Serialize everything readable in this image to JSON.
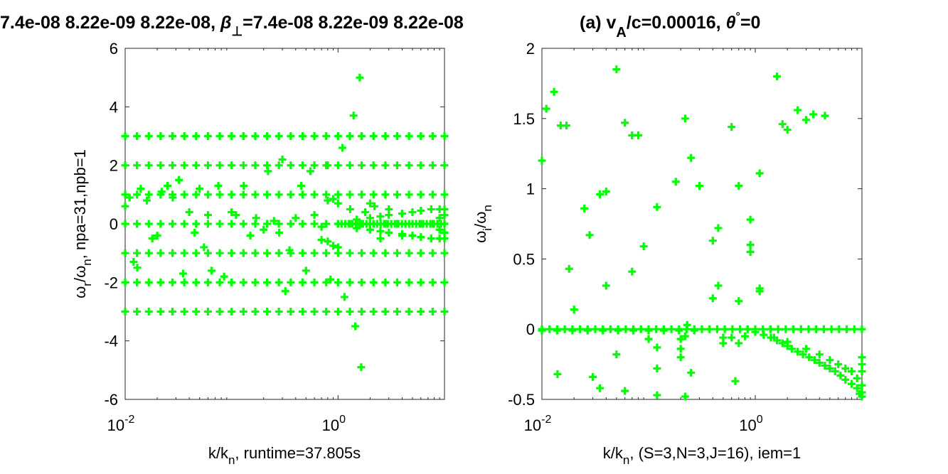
{
  "figure": {
    "title_left": "7.4e-08  8.22e-09  8.22e-08, ",
    "title_mid": "=7.4e-08  8.22e-09  8.22e-08",
    "title_overlap": "(a) v",
    "title_right": "/c=0.00016, ",
    "title_end": "=0",
    "beta_symbol": "β",
    "perp_symbol": "⊥",
    "sub_A": "A",
    "theta_symbol": "θ",
    "degree_symbol": "°"
  },
  "colors": {
    "marker": "#00ff00",
    "axis": "#262626"
  },
  "chart_data": [
    {
      "type": "scatter",
      "panel": "left",
      "marker": "+",
      "xscale": "log",
      "xlim": [
        0.01,
        10
      ],
      "ylim": [
        -6,
        6
      ],
      "xticks": [
        0.01,
        1
      ],
      "xtick_labels": [
        {
          "base": "10",
          "exp": "-2"
        },
        {
          "base": "10",
          "exp": "0"
        }
      ],
      "yticks": [
        -6,
        -4,
        -2,
        0,
        2,
        4,
        6
      ],
      "ytick_labels": [
        "-6",
        "-4",
        "-2",
        "0",
        "2",
        "4",
        "6"
      ],
      "xlabel": {
        "pre": "k/k",
        "sub": "n",
        "post": ", runtime=37.805s"
      },
      "ylabel": {
        "omega": "ω",
        "sub1": "r",
        "slash": "/",
        "sub2": "n",
        "post": ", npa=31,npb=1"
      },
      "bands_y": [
        -3,
        -2,
        -1,
        0,
        1,
        2,
        3
      ],
      "band_x_range": [
        0.01,
        10
      ],
      "band_points_per_decade": 9,
      "extra_points": [
        [
          0.01,
          0.6
        ],
        [
          0.011,
          0.9
        ],
        [
          0.012,
          -1.3
        ],
        [
          0.013,
          -1.5
        ],
        [
          0.014,
          1.2
        ],
        [
          0.016,
          0.8
        ],
        [
          0.018,
          -0.5
        ],
        [
          0.02,
          -0.4
        ],
        [
          0.022,
          1.1
        ],
        [
          0.025,
          1.3
        ],
        [
          0.028,
          0.9
        ],
        [
          0.032,
          1.5
        ],
        [
          0.035,
          -1.7
        ],
        [
          0.04,
          0.4
        ],
        [
          0.045,
          -0.3
        ],
        [
          0.05,
          1.2
        ],
        [
          0.055,
          -0.8
        ],
        [
          0.06,
          0.3
        ],
        [
          0.065,
          -1.6
        ],
        [
          0.075,
          1.3
        ],
        [
          0.085,
          -1.8
        ],
        [
          0.1,
          0.4
        ],
        [
          0.11,
          0.3
        ],
        [
          0.13,
          1.3
        ],
        [
          0.15,
          -0.4
        ],
        [
          0.17,
          0.2
        ],
        [
          0.2,
          -0.2
        ],
        [
          0.22,
          1.8
        ],
        [
          0.25,
          0.1
        ],
        [
          0.28,
          -0.3
        ],
        [
          0.3,
          2.2
        ],
        [
          0.32,
          -2.3
        ],
        [
          0.35,
          -0.9
        ],
        [
          0.4,
          0.2
        ],
        [
          0.45,
          1.3
        ],
        [
          0.5,
          -1.6
        ],
        [
          0.55,
          1.8
        ],
        [
          0.6,
          0.3
        ],
        [
          0.7,
          -0.1
        ],
        [
          0.8,
          2.0
        ],
        [
          0.85,
          -1.9
        ],
        [
          1.0,
          0.7
        ],
        [
          1.1,
          2.6
        ],
        [
          1.15,
          -2.5
        ],
        [
          1.3,
          0.5
        ],
        [
          1.4,
          3.7
        ],
        [
          1.45,
          -3.5
        ],
        [
          1.6,
          5.0
        ],
        [
          1.65,
          -4.9
        ],
        [
          1.8,
          0.4
        ],
        [
          2.0,
          0.7
        ],
        [
          2.2,
          0.6
        ],
        [
          2.5,
          -0.5
        ],
        [
          3.0,
          0.5
        ],
        [
          4.0,
          -0.4
        ]
      ],
      "spread_points": [
        [
          1.5,
          0.15
        ],
        [
          1.5,
          -0.15
        ],
        [
          2.0,
          0.2
        ],
        [
          2.0,
          -0.2
        ],
        [
          2.5,
          0.25
        ],
        [
          2.5,
          -0.25
        ],
        [
          3.0,
          0.3
        ],
        [
          3.0,
          -0.3
        ],
        [
          4.0,
          0.35
        ],
        [
          4.0,
          -0.35
        ],
        [
          5.0,
          0.4
        ],
        [
          5.0,
          -0.4
        ],
        [
          6.0,
          0.45
        ],
        [
          6.0,
          -0.45
        ],
        [
          7.5,
          0.5
        ],
        [
          7.5,
          -0.5
        ],
        [
          9.0,
          0.5
        ],
        [
          9.0,
          -0.5
        ],
        [
          10.0,
          0.5
        ],
        [
          10.0,
          -0.5
        ],
        [
          10.0,
          0.3
        ],
        [
          10.0,
          -0.3
        ],
        [
          9.0,
          0.2
        ],
        [
          9.0,
          -0.2
        ],
        [
          0.8,
          -0.6
        ],
        [
          0.9,
          -0.75
        ],
        [
          0.7,
          -0.55
        ],
        [
          0.8,
          0.8
        ],
        [
          0.9,
          0.85
        ],
        [
          1.0,
          -0.8
        ]
      ]
    },
    {
      "type": "scatter",
      "panel": "right",
      "marker": "+",
      "xscale": "log",
      "xlim": [
        0.01,
        10
      ],
      "ylim": [
        -0.5,
        2
      ],
      "xticks": [
        0.01,
        1
      ],
      "xtick_labels": [
        {
          "base": "10",
          "exp": "-2"
        },
        {
          "base": "10",
          "exp": "0"
        }
      ],
      "yticks": [
        -0.5,
        0,
        0.5,
        1,
        1.5,
        2
      ],
      "ytick_labels": [
        "-0.5",
        "0",
        "0.5",
        "1",
        "1.5",
        "2"
      ],
      "xlabel": {
        "pre": "k/k",
        "sub": "n",
        "post": ", (S=3,N=3,J=16), iem=1"
      },
      "ylabel": {
        "omega": "ω",
        "sub1": "i",
        "slash": "/",
        "omega2": "ω",
        "sub2": "n"
      },
      "zero_band_x_range": [
        0.01,
        10
      ],
      "zero_band_points_per_decade": 14,
      "points": [
        [
          0.01,
          1.2
        ],
        [
          0.011,
          1.57
        ],
        [
          0.013,
          1.69
        ],
        [
          0.015,
          1.45
        ],
        [
          0.017,
          1.45
        ],
        [
          0.014,
          -0.32
        ],
        [
          0.018,
          0.43
        ],
        [
          0.02,
          0.14
        ],
        [
          0.025,
          0.86
        ],
        [
          0.028,
          0.67
        ],
        [
          0.03,
          -0.34
        ],
        [
          0.035,
          0.96
        ],
        [
          0.04,
          0.98
        ],
        [
          0.04,
          0.31
        ],
        [
          0.035,
          -0.42
        ],
        [
          0.05,
          1.85
        ],
        [
          0.05,
          -0.18
        ],
        [
          0.06,
          1.47
        ],
        [
          0.06,
          -0.44
        ],
        [
          0.07,
          1.38
        ],
        [
          0.08,
          1.38
        ],
        [
          0.07,
          0.41
        ],
        [
          0.09,
          0.59
        ],
        [
          0.1,
          -0.07
        ],
        [
          0.12,
          0.87
        ],
        [
          0.12,
          -0.13
        ],
        [
          0.12,
          -0.28
        ],
        [
          0.12,
          -0.47
        ],
        [
          0.18,
          1.05
        ],
        [
          0.2,
          -0.07
        ],
        [
          0.2,
          -0.14
        ],
        [
          0.22,
          1.5
        ],
        [
          0.23,
          0.03
        ],
        [
          0.22,
          -0.48
        ],
        [
          0.25,
          1.22
        ],
        [
          0.25,
          -0.31
        ],
        [
          0.3,
          1.02
        ],
        [
          0.4,
          0.63
        ],
        [
          0.4,
          0.22
        ],
        [
          0.45,
          0.72
        ],
        [
          0.45,
          0.31
        ],
        [
          0.6,
          1.44
        ],
        [
          0.65,
          -0.37
        ],
        [
          0.7,
          1.02
        ],
        [
          0.7,
          0.2
        ],
        [
          0.9,
          0.78
        ],
        [
          0.9,
          0.55
        ],
        [
          0.9,
          0.6
        ],
        [
          1.1,
          1.11
        ],
        [
          1.1,
          0.27
        ],
        [
          1.1,
          0.29
        ],
        [
          1.6,
          1.8
        ],
        [
          1.8,
          1.46
        ],
        [
          2.0,
          1.42
        ],
        [
          2.5,
          1.56
        ],
        [
          3.0,
          1.49
        ],
        [
          3.5,
          1.53
        ],
        [
          4.5,
          1.52
        ],
        [
          0.2,
          -0.2
        ],
        [
          0.22,
          -0.05
        ]
      ],
      "decay_points": [
        [
          1.0,
          -0.02
        ],
        [
          1.2,
          -0.04
        ],
        [
          1.4,
          -0.06
        ],
        [
          1.6,
          -0.08
        ],
        [
          1.8,
          -0.1
        ],
        [
          2.0,
          -0.12
        ],
        [
          2.2,
          -0.14
        ],
        [
          2.5,
          -0.16
        ],
        [
          2.8,
          -0.18
        ],
        [
          3.2,
          -0.2
        ],
        [
          3.6,
          -0.22
        ],
        [
          4.0,
          -0.24
        ],
        [
          4.5,
          -0.26
        ],
        [
          5.0,
          -0.28
        ],
        [
          5.6,
          -0.3
        ],
        [
          6.3,
          -0.33
        ],
        [
          7.0,
          -0.36
        ],
        [
          8.0,
          -0.39
        ],
        [
          9.0,
          -0.42
        ],
        [
          10.0,
          -0.45
        ],
        [
          10.0,
          -0.4
        ],
        [
          10.0,
          -0.3
        ],
        [
          10.0,
          -0.25
        ],
        [
          10.0,
          -0.2
        ],
        [
          9.0,
          -0.35
        ],
        [
          8.0,
          -0.3
        ],
        [
          7.0,
          -0.28
        ],
        [
          6.0,
          -0.25
        ],
        [
          5.0,
          -0.22
        ],
        [
          4.0,
          -0.18
        ],
        [
          3.0,
          -0.14
        ],
        [
          2.0,
          -0.09
        ],
        [
          1.5,
          -0.06
        ],
        [
          10.0,
          -0.48
        ],
        [
          9.5,
          -0.46
        ],
        [
          0.6,
          -0.06
        ],
        [
          0.8,
          -0.05
        ],
        [
          0.7,
          -0.1
        ],
        [
          0.5,
          -0.1
        ],
        [
          0.5,
          -0.06
        ]
      ]
    }
  ]
}
